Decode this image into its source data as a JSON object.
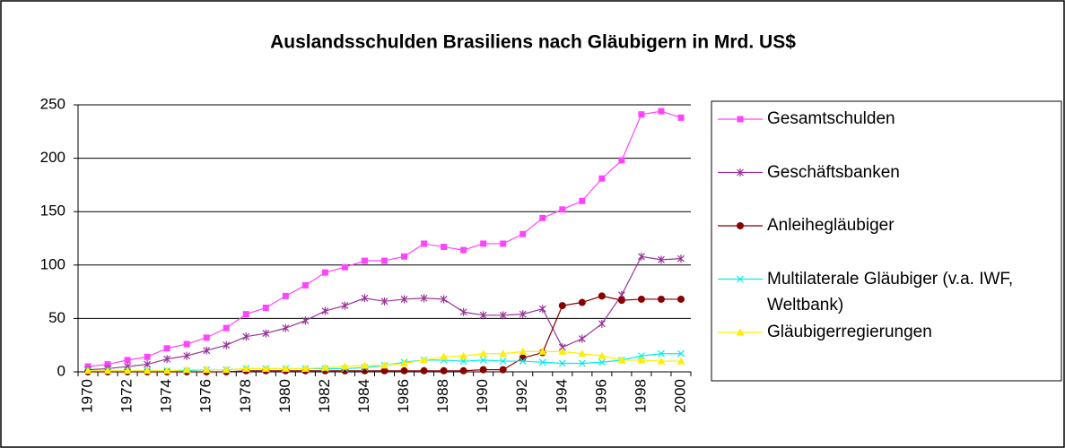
{
  "chart_data": {
    "type": "line",
    "title": "Auslandsschulden Brasiliens nach Gläubigern in Mrd. US$",
    "categories": [
      "1970",
      null,
      "1972",
      null,
      "1974",
      null,
      "1976",
      null,
      "1978",
      null,
      "1980",
      null,
      "1982",
      null,
      "1984",
      null,
      "1986",
      null,
      "1988",
      null,
      "1990",
      null,
      "1992",
      null,
      "1994",
      null,
      "1996",
      null,
      "1998",
      null,
      "2000"
    ],
    "series": [
      {
        "name": "Gesamtschulden",
        "color": "#ff44ff",
        "marker": "square",
        "values": [
          5,
          7,
          11,
          14,
          22,
          26,
          32,
          41,
          54,
          60,
          71,
          81,
          93,
          98,
          104,
          104,
          108,
          120,
          117,
          114,
          120,
          120,
          129,
          144,
          152,
          160,
          181,
          198,
          241,
          244,
          238
        ]
      },
      {
        "name": "Geschäftsbanken",
        "color": "#993399",
        "marker": "asterisk",
        "values": [
          2,
          3,
          5,
          7,
          12,
          15,
          20,
          25,
          33,
          36,
          41,
          48,
          57,
          62,
          69,
          66,
          68,
          69,
          68,
          56,
          53,
          53,
          54,
          59,
          23,
          31,
          45,
          72,
          108,
          105,
          106
        ]
      },
      {
        "name": "Anleihegläubiger",
        "color": "#880000",
        "marker": "circle",
        "values": [
          0,
          0,
          0,
          0,
          0,
          0,
          0,
          0,
          1,
          1,
          1,
          1,
          1,
          1,
          1,
          1,
          1,
          1,
          1,
          1,
          2,
          2,
          13,
          18,
          62,
          65,
          71,
          67,
          68,
          68,
          68
        ]
      },
      {
        "name": "Multilaterale Gläubiger (v.a. IWF, Weltbank)",
        "color": "#00eeee",
        "marker": "x",
        "values": [
          1,
          1,
          1,
          1,
          1,
          1,
          2,
          2,
          3,
          3,
          3,
          3,
          3,
          3,
          4,
          6,
          9,
          11,
          11,
          10,
          11,
          10,
          10,
          9,
          8,
          8,
          9,
          11,
          15,
          17,
          17
        ]
      },
      {
        "name": "Gläubigerregierungen",
        "color": "#ffee00",
        "marker": "triangle",
        "values": [
          1,
          1,
          1,
          1,
          1,
          2,
          2,
          2,
          3,
          3,
          3,
          3,
          4,
          5,
          6,
          6,
          8,
          11,
          14,
          15,
          17,
          17,
          19,
          19,
          19,
          17,
          15,
          11,
          11,
          10,
          10
        ]
      }
    ],
    "ylim": [
      0,
      250
    ],
    "yticks": [
      0,
      50,
      100,
      150,
      200,
      250
    ],
    "grid": true
  }
}
